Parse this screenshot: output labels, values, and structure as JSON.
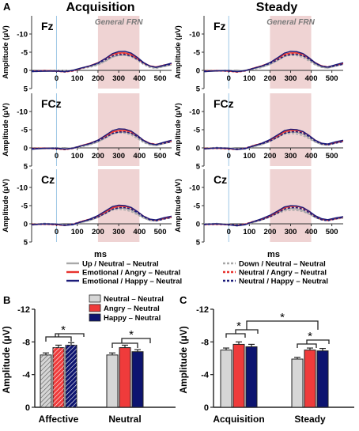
{
  "panels": {
    "A": "A",
    "B": "B",
    "C": "C"
  },
  "erp": {
    "columns": [
      "Acquisition",
      "Steady"
    ],
    "rows": [
      "Fz",
      "FCz",
      "Cz"
    ],
    "window_label": "General FRN",
    "window_ms": [
      200,
      400
    ],
    "ylabel": "Amplitude (μV)",
    "xlabel": "ms",
    "xticks": [
      0,
      100,
      200,
      300,
      400,
      500
    ],
    "yticks": [
      -10,
      -5,
      0,
      5
    ],
    "ylim": [
      -15,
      5
    ]
  },
  "legend_a": [
    {
      "label": "Up / Neutral – Neutral",
      "color": "#a8a8a8",
      "dash": false
    },
    {
      "label": "Down / Neutral – Neutral",
      "color": "#a8a8a8",
      "dash": true
    },
    {
      "label": "Emotional / Angry – Neutral",
      "color": "#e8322e",
      "dash": false
    },
    {
      "label": "Neutral / Angry – Neutral",
      "color": "#e8322e",
      "dash": true
    },
    {
      "label": "Emotional / Happy – Neutral",
      "color": "#1c1c7a",
      "dash": false
    },
    {
      "label": "Neutral / Happy – Neutral",
      "color": "#1c1c7a",
      "dash": true
    }
  ],
  "conditions": [
    {
      "label": "Neutral – Neutral",
      "color": "#d6d6d6"
    },
    {
      "label": "Angry – Neutral",
      "color": "#ef3b3b"
    },
    {
      "label": "Happy – Neutral",
      "color": "#0d1470"
    }
  ],
  "chart_data": [
    {
      "type": "bar",
      "panel": "B",
      "categories": [
        "Affective",
        "Neutral"
      ],
      "series": [
        {
          "name": "Neutral – Neutral",
          "values": [
            -6.4,
            -6.4
          ],
          "errors": [
            0.25,
            0.25
          ]
        },
        {
          "name": "Angry – Neutral",
          "values": [
            -7.3,
            -7.3
          ],
          "errors": [
            0.3,
            0.3
          ]
        },
        {
          "name": "Happy – Neutral",
          "values": [
            -7.6,
            -6.8
          ],
          "errors": [
            0.3,
            0.25
          ]
        }
      ],
      "ylabel": "Amplitude (μV)",
      "ylim": [
        0,
        -12
      ],
      "yticks": [
        0,
        -4,
        -8,
        -12
      ],
      "annotations": [
        "*",
        "*"
      ]
    },
    {
      "type": "bar",
      "panel": "C",
      "categories": [
        "Acquisition",
        "Steady"
      ],
      "series": [
        {
          "name": "Neutral – Neutral",
          "values": [
            -7.0,
            -5.9
          ],
          "errors": [
            0.25,
            0.2
          ]
        },
        {
          "name": "Angry – Neutral",
          "values": [
            -7.7,
            -7.0
          ],
          "errors": [
            0.3,
            0.25
          ]
        },
        {
          "name": "Happy – Neutral",
          "values": [
            -7.4,
            -6.9
          ],
          "errors": [
            0.3,
            0.3
          ]
        }
      ],
      "ylabel": "Amplitude (μV)",
      "ylim": [
        0,
        -12
      ],
      "yticks": [
        0,
        -4,
        -8,
        -12
      ],
      "annotations": [
        "*",
        "*",
        "*"
      ]
    }
  ]
}
